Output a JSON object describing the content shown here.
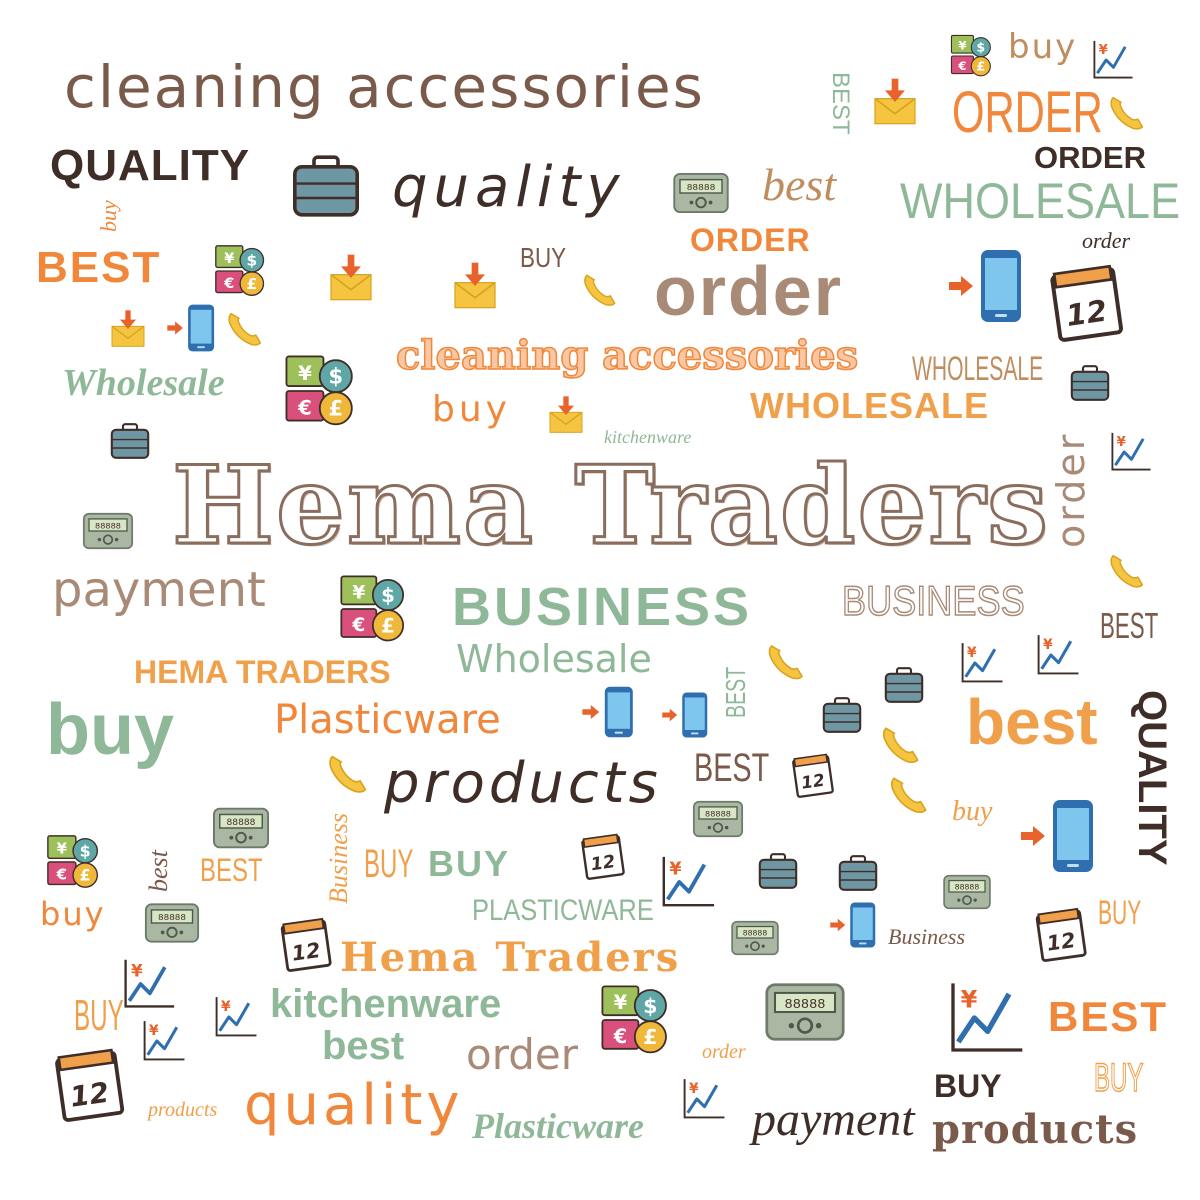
{
  "colors": {
    "brown": "#7a5a4a",
    "tan": "#c08d5f",
    "orange": "#f0873a",
    "green": "#8fb898",
    "dark": "#3f2e28",
    "light_brown": "#a88a76"
  },
  "words": {
    "w1": "cleaning accessories",
    "w2": "BEST",
    "w3": "QUALITY",
    "w4": "quality",
    "w5": "best",
    "w6": "buy",
    "w7": "ORDER",
    "w8": "ORDER",
    "w9": "WHOLESALE",
    "w10": "order",
    "w11": "buy",
    "w12": "BEST",
    "w13": "BUY",
    "w14": "ORDER",
    "w15": "order",
    "w16": "Wholesale",
    "w17": "cleaning accessories",
    "w18": "WHOLESALE",
    "w19": "buy",
    "w20": "kitchenware",
    "w21": "WHOLESALE",
    "w22": "order",
    "w23": "Hema Traders",
    "w24": "payment",
    "w25": "BUSINESS",
    "w26": "BUSINESS",
    "w27": "Wholesale",
    "w28": "BEST",
    "w29": "HEMA TRADERS",
    "w30": "buy",
    "w31": "Plasticware",
    "w32": "BEST",
    "w33": "best",
    "w34": "BEST",
    "w35": "products",
    "w36": "QUALITY",
    "w37": "buy",
    "w38": "Business",
    "w39": "BUY",
    "w40": "BUY",
    "w41": "best",
    "w42": "BEST",
    "w43": "buy",
    "w44": "PLASTICWARE",
    "w45": "Business",
    "w46": "BUY",
    "w47": "Hema Traders",
    "w48": "kitchenware",
    "w49": "best",
    "w50": "order",
    "w51": "order",
    "w52": "BUY",
    "w53": "BEST",
    "w54": "BUY",
    "w55": "BUY",
    "w56": "products",
    "w57": "quality",
    "w58": "Plasticware",
    "w59": "payment",
    "w60": "products"
  },
  "icons": {
    "calendar_day": "12",
    "currency_symbols": [
      "¥",
      "$",
      "€",
      "£"
    ],
    "chart_symbol": "¥",
    "pager_display": "88888",
    "names": [
      "currency-icon",
      "chart-icon",
      "mail-download-icon",
      "phone-icon",
      "briefcase-icon",
      "pager-icon",
      "mobile-phone-icon",
      "calendar-icon"
    ]
  }
}
